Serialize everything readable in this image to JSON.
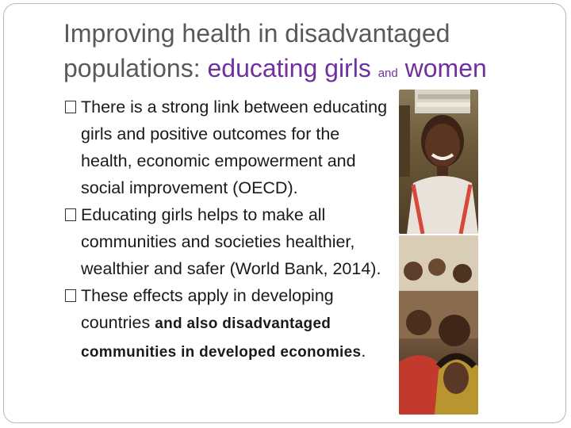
{
  "slide": {
    "title_part1": "Improving health in disadvantaged",
    "title_part2_prefix": "populations: ",
    "title_accent1": "educating girls",
    "title_small_and": "and",
    "title_accent2": "women",
    "bullets": [
      {
        "text": "There is a strong link between educating girls and positive outcomes for the health, economic empowerment and social improvement (OECD)."
      },
      {
        "text": "Educating girls helps to make all communities and societies healthier, wealthier and safer (World Bank, 2014)."
      },
      {
        "text": "These effects apply in developing countries ",
        "bold_tail": "and also disadvantaged communities in developed economies",
        "end": "."
      }
    ]
  },
  "colors": {
    "accent": "#7030a0",
    "title": "#595959",
    "body": "#1a1a1a"
  }
}
